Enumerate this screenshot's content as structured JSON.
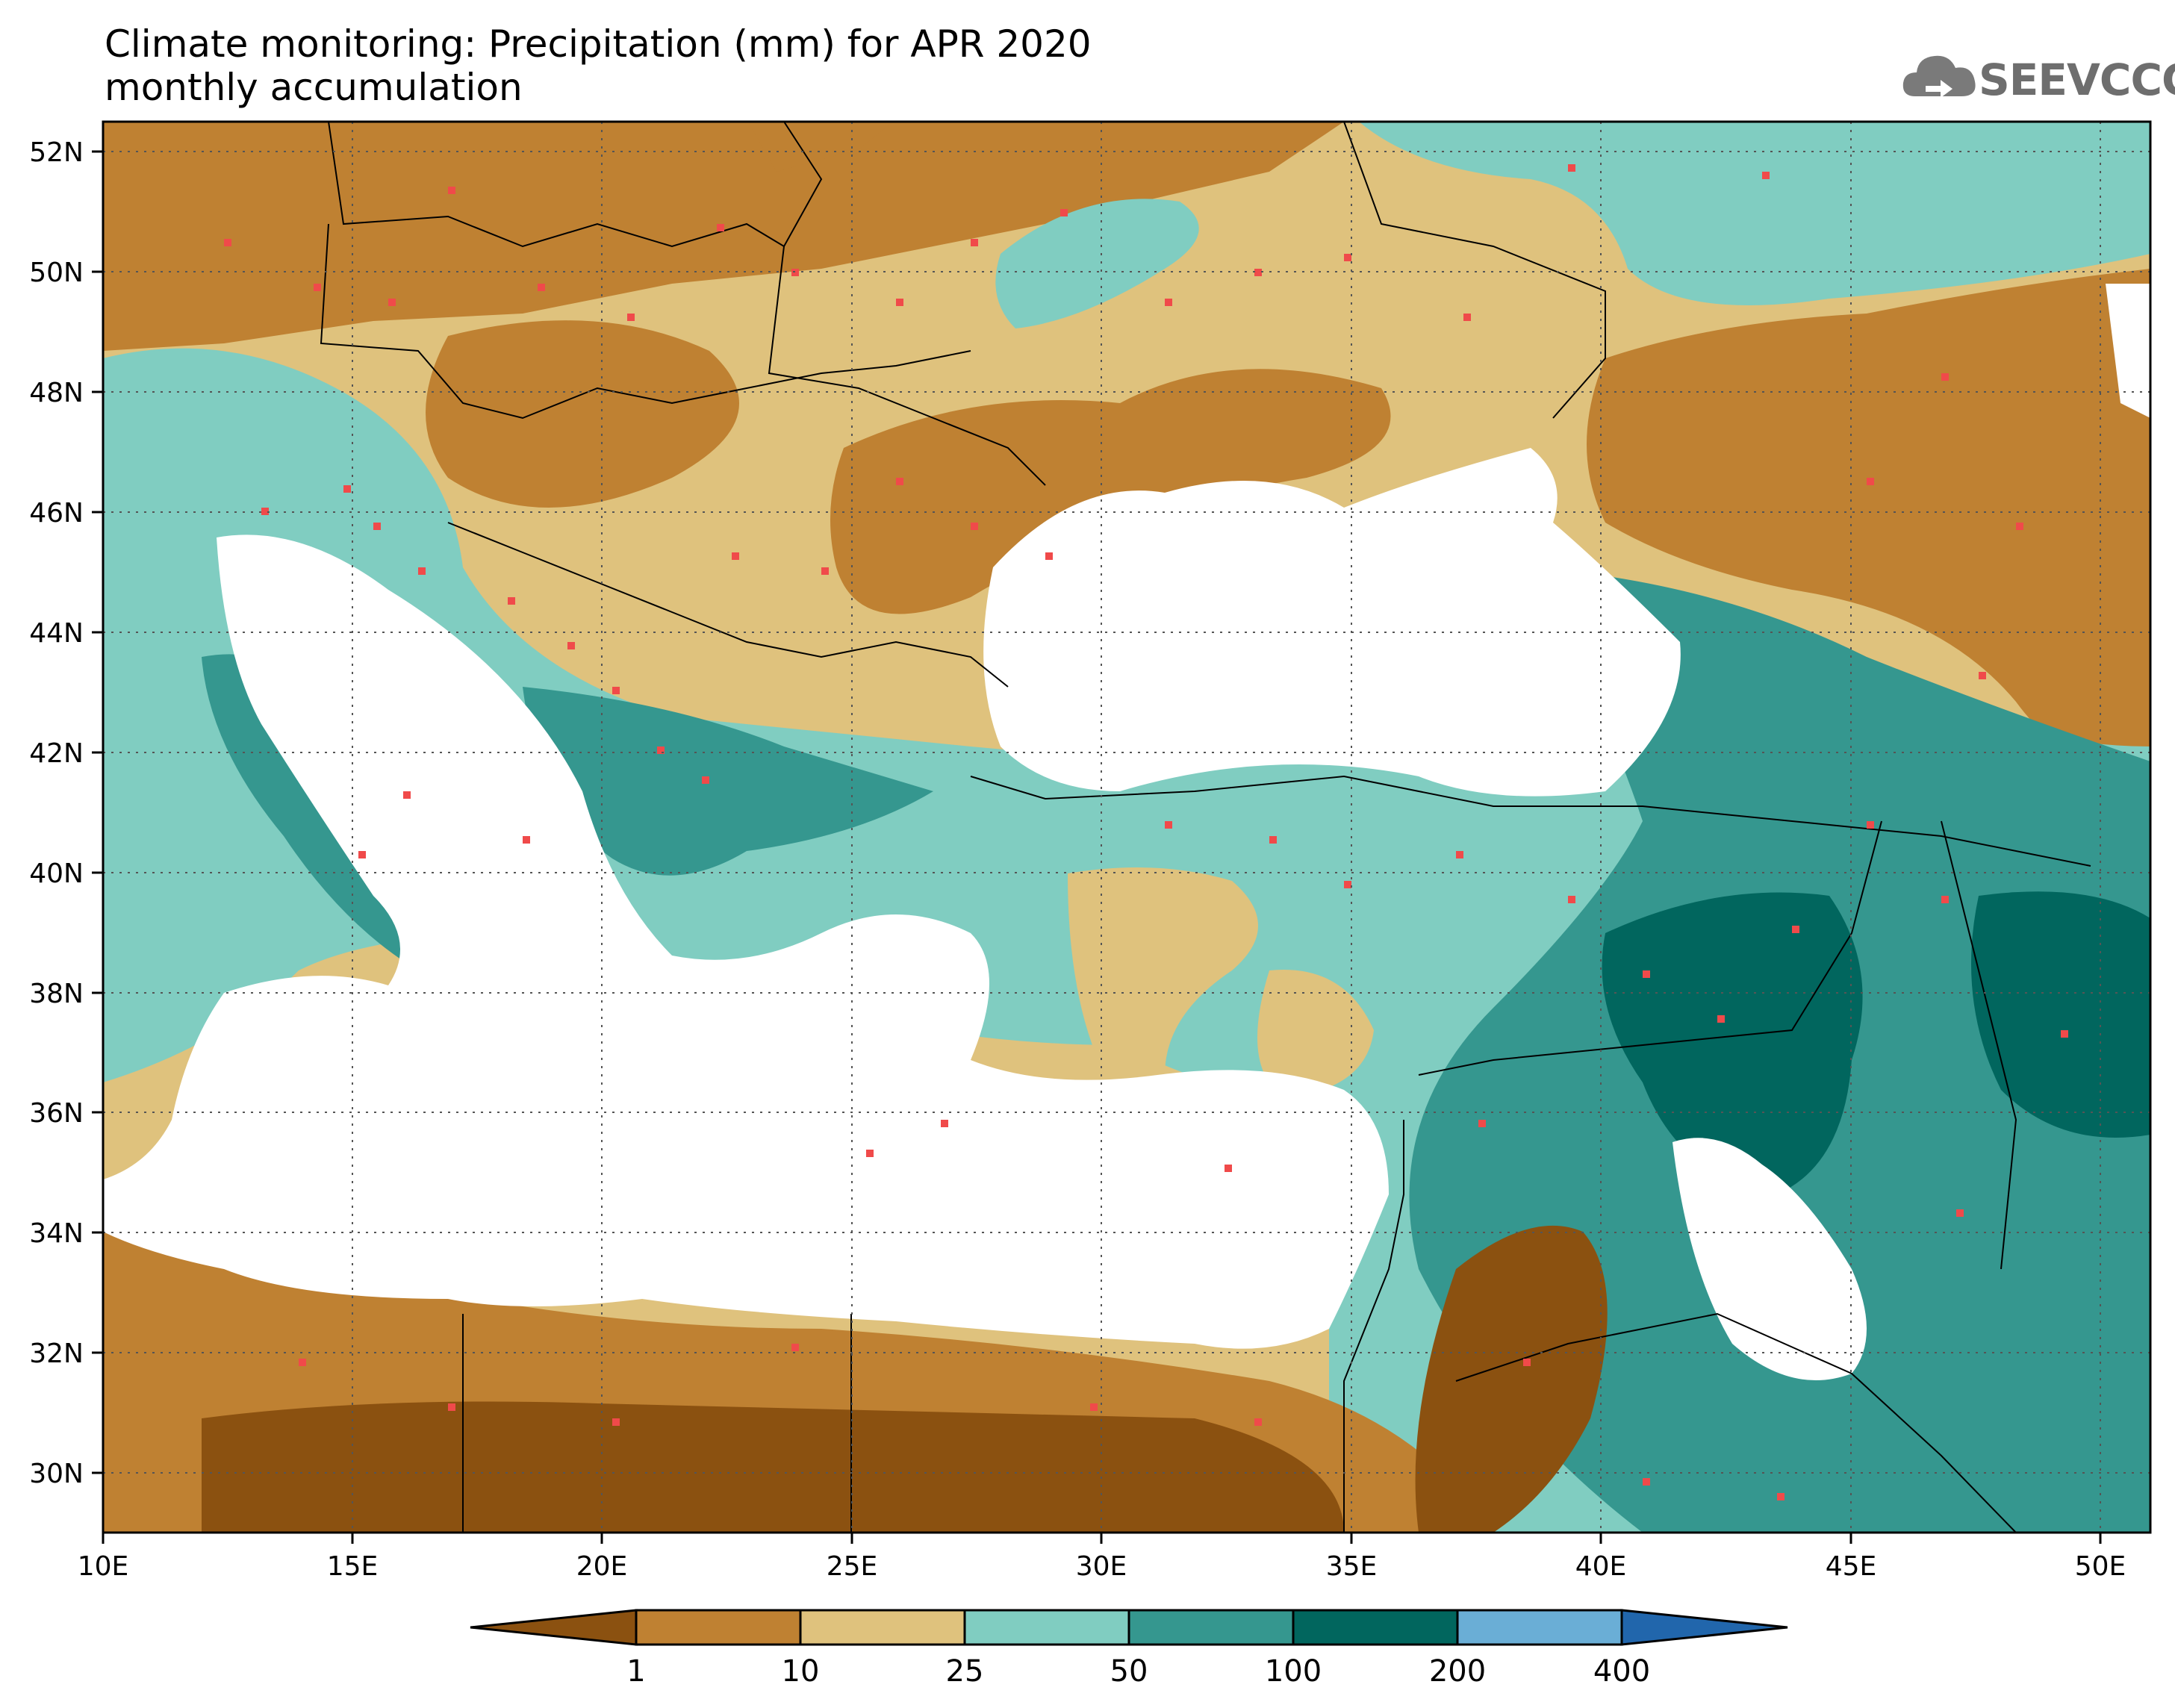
{
  "title": {
    "line1": "Climate monitoring: Precipitation (mm) for APR 2020",
    "line2": "monthly accumulation"
  },
  "logo": {
    "text": "SEEVCCC",
    "icon": "cloud-icon",
    "color": "#6e6e6e"
  },
  "map": {
    "lon_range": [
      10,
      51
    ],
    "lat_range": [
      29,
      52.5
    ],
    "lon_ticks": [
      "10E",
      "15E",
      "20E",
      "25E",
      "30E",
      "35E",
      "40E",
      "45E",
      "50E"
    ],
    "lat_ticks": [
      "30N",
      "32N",
      "34N",
      "36N",
      "38N",
      "40N",
      "42N",
      "44N",
      "46N",
      "48N",
      "50N",
      "52N"
    ]
  },
  "colorbar": {
    "levels": [
      "1",
      "10",
      "25",
      "50",
      "100",
      "200",
      "400"
    ],
    "colors": [
      "#8b5110",
      "#bf8132",
      "#dfc27d",
      "#80cdc1",
      "#35978f",
      "#01665e",
      "#6aaed6",
      "#2166ac"
    ]
  }
}
